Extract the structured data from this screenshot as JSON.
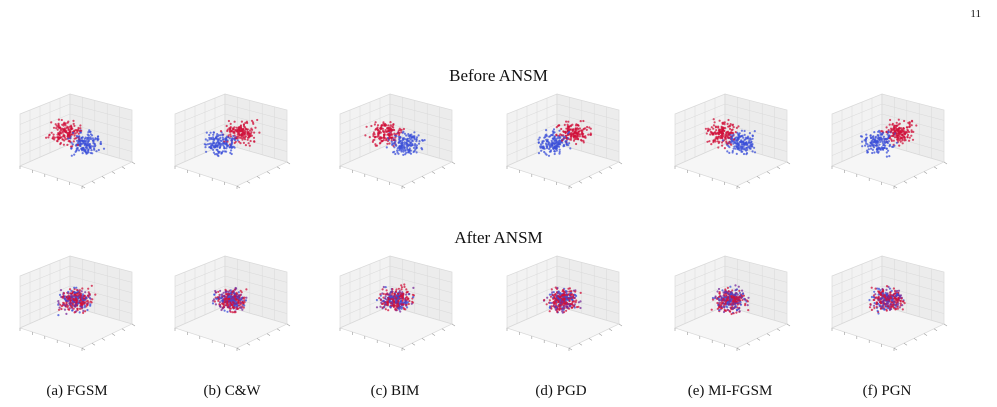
{
  "page_number": "11",
  "row_titles": {
    "before": "Before ANSM",
    "after": "After ANSM"
  },
  "captions": [
    "(a) FGSM",
    "(b) C&W",
    "(c) BIM",
    "(d) PGD",
    "(e) MI-FGSM",
    "(f) PGN"
  ],
  "colors": {
    "class_a": "#d0103a",
    "class_b": "#3b4fd8",
    "mixed": "#7a2a9a",
    "grid": "#d9d9d9",
    "pane": "#f2f2f2"
  },
  "chart_data": [
    {
      "type": "scatter",
      "title": "(a) FGSM",
      "row": "Before ANSM"
    },
    {
      "type": "scatter",
      "title": "(b) C&W",
      "row": "Before ANSM"
    },
    {
      "type": "scatter",
      "title": "(c) BIM",
      "row": "Before ANSM"
    },
    {
      "type": "scatter",
      "title": "(d) PGD",
      "row": "Before ANSM"
    },
    {
      "type": "scatter",
      "title": "(e) MI-FGSM",
      "row": "Before ANSM"
    },
    {
      "type": "scatter",
      "title": "(f) PGN",
      "row": "Before ANSM"
    },
    {
      "type": "scatter",
      "title": "(a) FGSM",
      "row": "After ANSM"
    },
    {
      "type": "scatter",
      "title": "(b) C&W",
      "row": "After ANSM"
    },
    {
      "type": "scatter",
      "title": "(c) BIM",
      "row": "After ANSM"
    },
    {
      "type": "scatter",
      "title": "(d) PGD",
      "row": "After ANSM"
    },
    {
      "type": "scatter",
      "title": "(e) MI-FGSM",
      "row": "After ANSM"
    },
    {
      "type": "scatter",
      "title": "(f) PGN",
      "row": "After ANSM"
    }
  ]
}
